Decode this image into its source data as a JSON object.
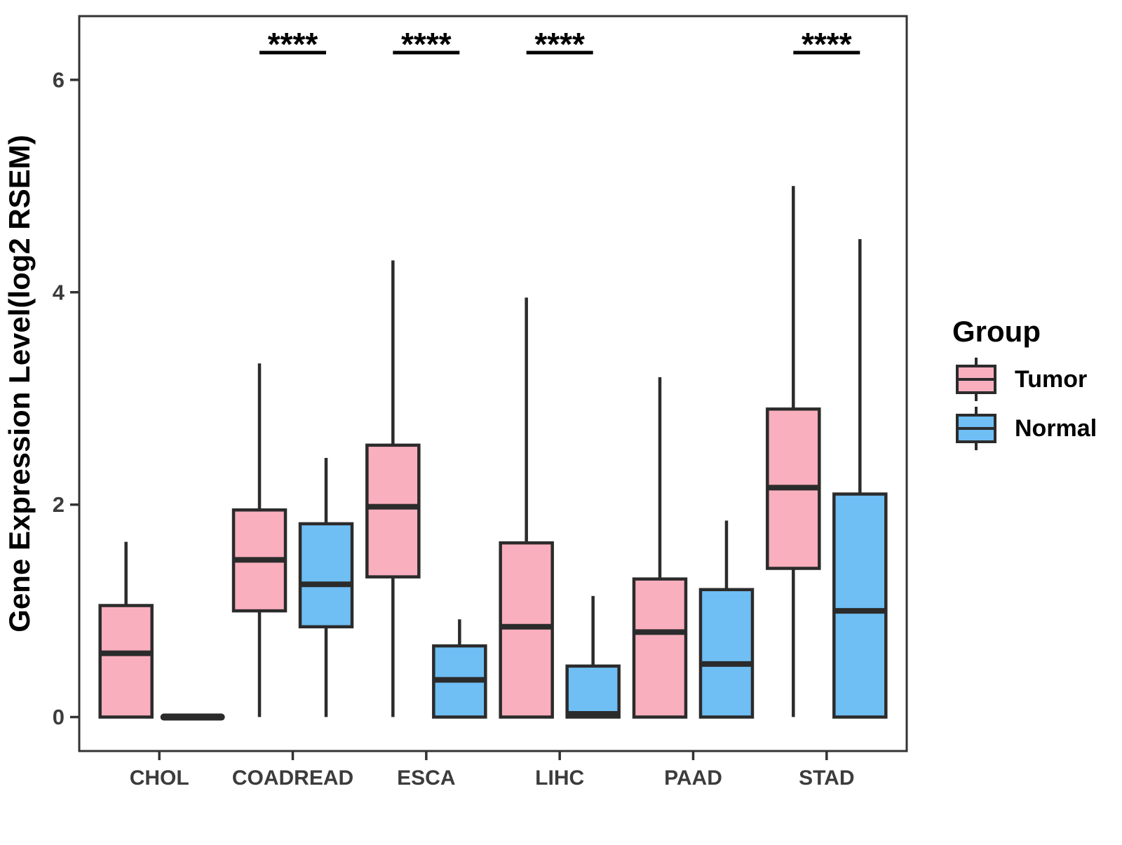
{
  "figure": {
    "y_axis_label": "Gene Expression Level(log2 RSEM)",
    "legend_title": "Group",
    "colors": {
      "tumor_fill": "#F9AFBE",
      "normal_fill": "#6FBEF4",
      "box_stroke": "#2B2B2B",
      "axis_stroke": "#333333",
      "tick_text": "#3C3C3C",
      "title_text": "#000000",
      "background": "#FFFFFF"
    }
  },
  "chart_data": {
    "type": "boxplot",
    "title": "",
    "xlabel": "",
    "ylabel": "Gene Expression Level(log2 RSEM)",
    "categories": [
      "CHOL",
      "COADREAD",
      "ESCA",
      "LIHC",
      "PAAD",
      "STAD"
    ],
    "y_ticks": [
      0,
      2,
      4,
      6
    ],
    "ylim": [
      -0.32,
      6.6
    ],
    "grid": false,
    "legend_position": "right",
    "legend_title": "Group",
    "legend_entries": [
      "Tumor",
      "Normal"
    ],
    "series": [
      {
        "name": "Tumor",
        "color": "#F9AFBE",
        "boxes": [
          {
            "category": "CHOL",
            "min": 0,
            "q1": 0,
            "median": 0.6,
            "q3": 1.05,
            "max": 1.65
          },
          {
            "category": "COADREAD",
            "min": 0,
            "q1": 1.0,
            "median": 1.48,
            "q3": 1.95,
            "max": 3.33
          },
          {
            "category": "ESCA",
            "min": 0,
            "q1": 1.32,
            "median": 1.98,
            "q3": 2.56,
            "max": 4.3
          },
          {
            "category": "LIHC",
            "min": 0,
            "q1": 0,
            "median": 0.85,
            "q3": 1.64,
            "max": 3.95
          },
          {
            "category": "PAAD",
            "min": 0,
            "q1": 0,
            "median": 0.8,
            "q3": 1.3,
            "max": 3.2
          },
          {
            "category": "STAD",
            "min": 0,
            "q1": 1.4,
            "median": 2.16,
            "q3": 2.9,
            "max": 5.0
          }
        ]
      },
      {
        "name": "Normal",
        "color": "#6FBEF4",
        "boxes": [
          {
            "category": "CHOL",
            "min": 0,
            "q1": 0,
            "median": 0,
            "q3": 0,
            "max": 0
          },
          {
            "category": "COADREAD",
            "min": 0,
            "q1": 0.85,
            "median": 1.25,
            "q3": 1.82,
            "max": 2.44
          },
          {
            "category": "ESCA",
            "min": 0,
            "q1": 0,
            "median": 0.35,
            "q3": 0.67,
            "max": 0.92
          },
          {
            "category": "LIHC",
            "min": 0,
            "q1": 0,
            "median": 0.03,
            "q3": 0.48,
            "max": 1.14
          },
          {
            "category": "PAAD",
            "min": 0,
            "q1": 0,
            "median": 0.5,
            "q3": 1.2,
            "max": 1.85
          },
          {
            "category": "STAD",
            "min": 0,
            "q1": 0,
            "median": 1.0,
            "q3": 2.1,
            "max": 4.5
          }
        ]
      }
    ],
    "significance": [
      {
        "category": "COADREAD",
        "label": "****"
      },
      {
        "category": "ESCA",
        "label": "****"
      },
      {
        "category": "LIHC",
        "label": "****"
      },
      {
        "category": "STAD",
        "label": "****"
      }
    ]
  }
}
